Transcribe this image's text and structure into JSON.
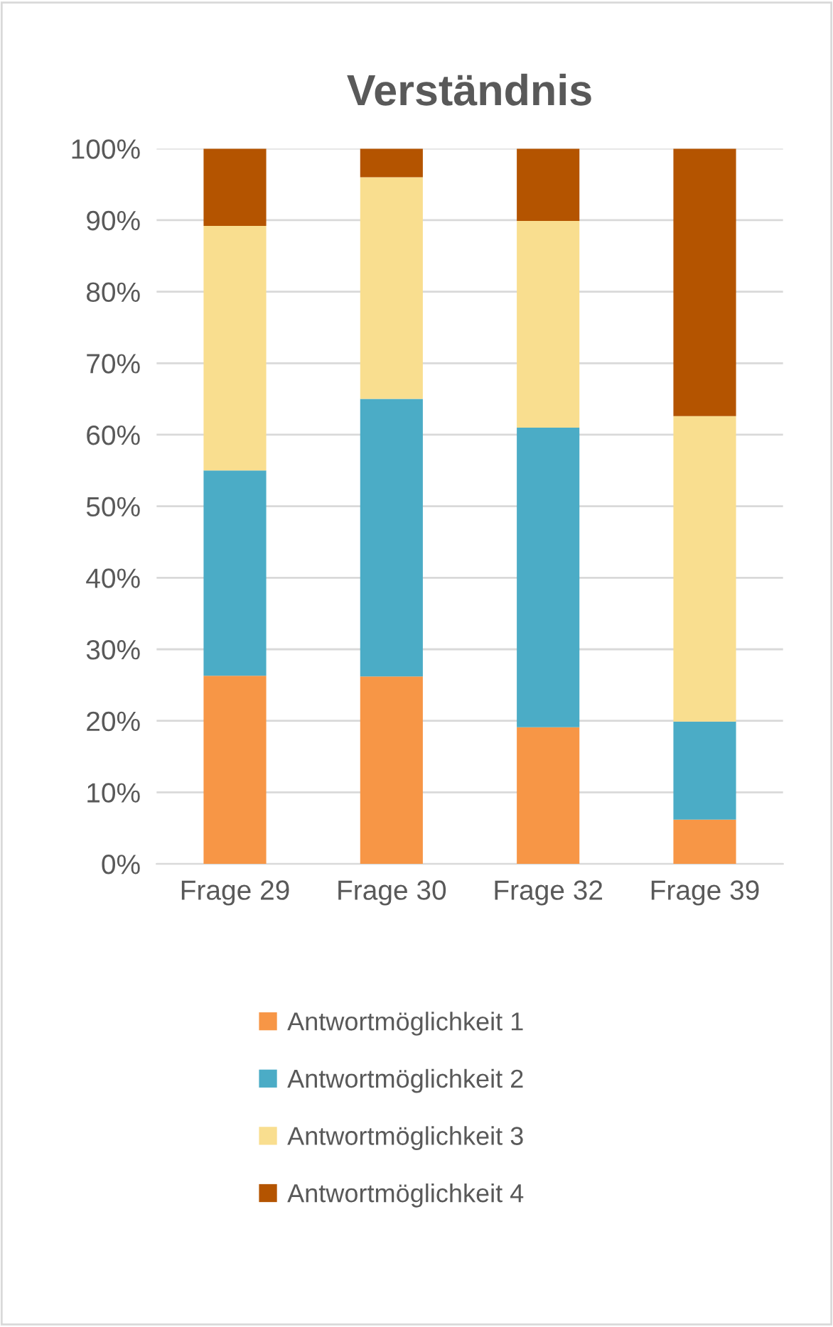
{
  "chart_data": {
    "type": "bar",
    "title": "Verständnis",
    "stacked": true,
    "categories": [
      "Frage 29",
      "Frage 30",
      "Frage 32",
      "Frage 39"
    ],
    "series": [
      {
        "name": "Antwortmöglichkeit 1",
        "color": "#f79646",
        "values": [
          26.3,
          26.2,
          19.1,
          6.2
        ]
      },
      {
        "name": "Antwortmöglichkeit 2",
        "color": "#4bacc6",
        "values": [
          28.7,
          38.8,
          41.9,
          13.7
        ]
      },
      {
        "name": "Antwortmöglichkeit 3",
        "color": "#f9de8f",
        "values": [
          34.2,
          31.0,
          28.9,
          42.7
        ]
      },
      {
        "name": "Antwortmöglichkeit 4",
        "color": "#b45400",
        "values": [
          10.8,
          4.0,
          10.1,
          37.4
        ]
      }
    ],
    "ylim": [
      0,
      100
    ],
    "yticks": [
      {
        "value": 0,
        "label": "0%"
      },
      {
        "value": 10,
        "label": "10%"
      },
      {
        "value": 20,
        "label": "20%"
      },
      {
        "value": 30,
        "label": "30%"
      },
      {
        "value": 40,
        "label": "40%"
      },
      {
        "value": 50,
        "label": "50%"
      },
      {
        "value": 60,
        "label": "60%"
      },
      {
        "value": 70,
        "label": "70%"
      },
      {
        "value": 80,
        "label": "80%"
      },
      {
        "value": 90,
        "label": "90%"
      },
      {
        "value": 100,
        "label": "100%"
      }
    ],
    "grid": "y",
    "legend": "bottom"
  }
}
